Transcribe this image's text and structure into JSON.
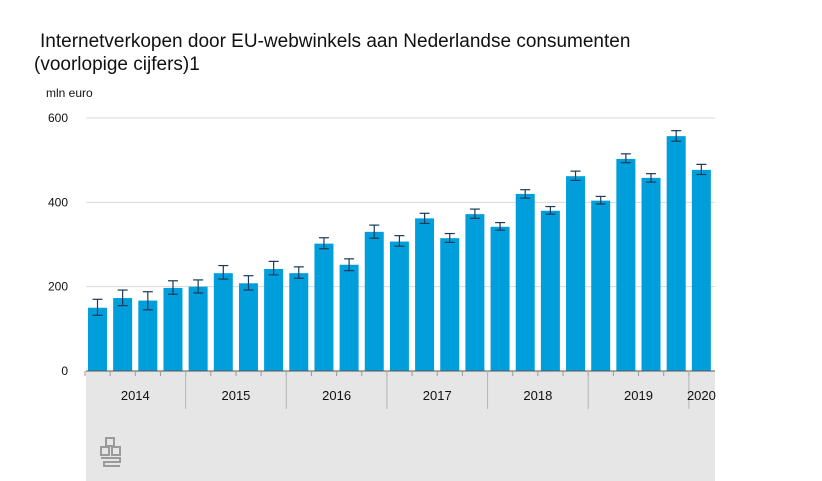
{
  "header": {
    "title": "Internetverkopen door EU-webwinkels aan Nederlandse consumenten",
    "subtitle": "(voorlopige cijfers)1"
  },
  "chart_data": {
    "type": "bar",
    "title": "Internetverkopen door EU-webwinkels aan Nederlandse consumenten",
    "subtitle": "(voorlopige cijfers)1",
    "ylabel": "mln euro",
    "xlabel": "",
    "ylim": [
      0,
      600
    ],
    "yticks": [
      0,
      200,
      400,
      600
    ],
    "grid": true,
    "bar_color": "#009fdb",
    "categories": [
      "2014 Q1",
      "2014 Q2",
      "2014 Q3",
      "2014 Q4",
      "2015 Q1",
      "2015 Q2",
      "2015 Q3",
      "2015 Q4",
      "2016 Q1",
      "2016 Q2",
      "2016 Q3",
      "2016 Q4",
      "2017 Q1",
      "2017 Q2",
      "2017 Q3",
      "2017 Q4",
      "2018 Q1",
      "2018 Q2",
      "2018 Q3",
      "2018 Q4",
      "2019 Q1",
      "2019 Q2",
      "2019 Q3",
      "2019 Q4",
      "2020 Q1"
    ],
    "values": [
      150,
      173,
      167,
      197,
      200,
      232,
      208,
      242,
      232,
      302,
      252,
      330,
      307,
      362,
      315,
      372,
      342,
      420,
      380,
      462,
      404,
      503,
      458,
      557,
      477
    ],
    "error_low": [
      132,
      155,
      145,
      182,
      185,
      218,
      192,
      228,
      220,
      290,
      238,
      315,
      296,
      350,
      305,
      362,
      334,
      410,
      372,
      452,
      396,
      494,
      448,
      545,
      466
    ],
    "error_high": [
      170,
      192,
      188,
      214,
      216,
      250,
      226,
      260,
      247,
      316,
      266,
      346,
      321,
      374,
      326,
      384,
      352,
      430,
      390,
      474,
      414,
      515,
      468,
      570,
      490
    ],
    "year_labels": [
      "2014",
      "2015",
      "2016",
      "2017",
      "2018",
      "2019",
      "2020"
    ]
  }
}
